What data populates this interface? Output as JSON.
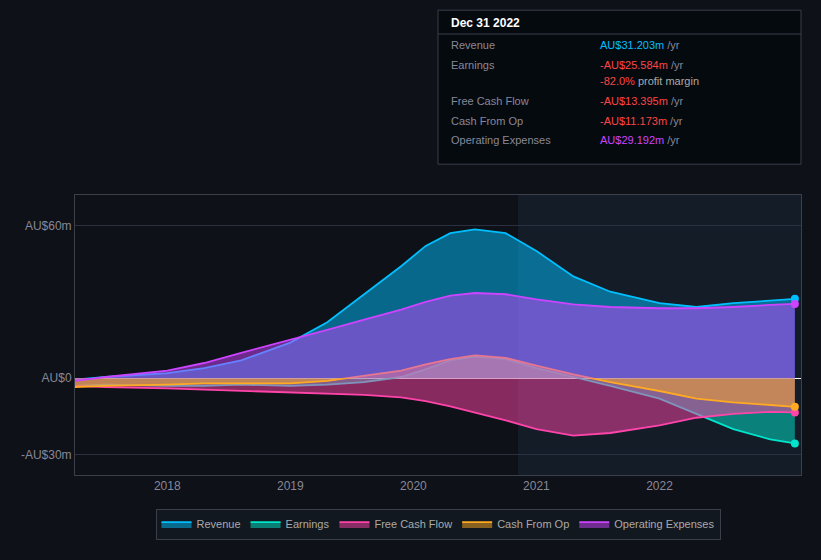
{
  "chart_data": {
    "type": "area",
    "x": [
      2017.25,
      2017.5,
      2018.0,
      2018.3,
      2018.6,
      2019.0,
      2019.3,
      2019.6,
      2019.9,
      2020.1,
      2020.3,
      2020.5,
      2020.75,
      2021.0,
      2021.3,
      2021.6,
      2022.0,
      2022.3,
      2022.6,
      2022.9,
      2023.1
    ],
    "series": [
      {
        "name": "Revenue",
        "color": "#00bfff",
        "values": [
          -0.5,
          0.5,
          2.0,
          4.0,
          7.0,
          14.0,
          22.0,
          33.0,
          44.0,
          52.0,
          57.0,
          58.5,
          57.0,
          50.0,
          40.0,
          34.0,
          29.5,
          28.0,
          29.5,
          30.5,
          31.2
        ]
      },
      {
        "name": "Earnings",
        "color": "#00e5cc",
        "values": [
          -3.0,
          -2.5,
          -3.0,
          -3.0,
          -2.5,
          -3.0,
          -2.5,
          -1.5,
          0.5,
          3.5,
          7.0,
          8.5,
          7.5,
          4.0,
          0.5,
          -3.0,
          -8.0,
          -14.0,
          -20.0,
          -24.0,
          -25.6
        ]
      },
      {
        "name": "Free Cash Flow",
        "color": "#ff44aa",
        "values": [
          -3.0,
          -3.5,
          -4.0,
          -4.5,
          -5.0,
          -5.5,
          -6.0,
          -6.5,
          -7.5,
          -9.0,
          -11.0,
          -13.5,
          -16.5,
          -20.0,
          -22.5,
          -21.5,
          -18.5,
          -15.5,
          -14.0,
          -13.2,
          -13.4
        ]
      },
      {
        "name": "Cash From Op",
        "color": "#ffaa22",
        "values": [
          -3.5,
          -3.0,
          -2.5,
          -2.0,
          -2.0,
          -2.0,
          -1.0,
          1.0,
          3.0,
          5.5,
          7.5,
          9.0,
          8.0,
          5.0,
          1.5,
          -1.5,
          -5.0,
          -8.0,
          -9.5,
          -10.5,
          -11.2
        ]
      },
      {
        "name": "Operating Expenses",
        "color": "#cc44ff",
        "values": [
          -1.0,
          0.5,
          3.0,
          6.0,
          10.0,
          15.0,
          19.0,
          23.0,
          27.0,
          30.0,
          32.5,
          33.5,
          33.0,
          31.0,
          29.0,
          28.0,
          27.5,
          27.5,
          28.0,
          28.8,
          29.2
        ]
      }
    ],
    "xlim": [
      2017.25,
      2023.15
    ],
    "xticks": [
      2018,
      2019,
      2020,
      2021,
      2022
    ],
    "ylim": [
      -38,
      72
    ],
    "yticks": [
      {
        "value": 60,
        "label": "AU$60m"
      },
      {
        "value": 0,
        "label": "AU$0"
      },
      {
        "value": -30,
        "label": "-AU$30m"
      }
    ],
    "grid": "y",
    "legend": "bottom",
    "marker": "end",
    "highlight_x": [
      2020.85,
      2023.15
    ],
    "info_box": {
      "title": "Dec 31 2022",
      "rows": [
        {
          "label": "Revenue",
          "value": "AU$31.203m",
          "color": "#00bfff",
          "suffix": " /yr"
        },
        {
          "label": "Earnings",
          "value": "-AU$25.584m",
          "color": "#ff4444",
          "suffix": " /yr",
          "note": "-82.0% profit margin",
          "note_color": "#ff4444"
        },
        {
          "label": "Free Cash Flow",
          "value": "-AU$13.395m",
          "color": "#ff4444",
          "suffix": " /yr"
        },
        {
          "label": "Cash From Op",
          "value": "-AU$11.173m",
          "color": "#ff4444",
          "suffix": " /yr"
        },
        {
          "label": "Operating Expenses",
          "value": "AU$29.192m",
          "color": "#cc44ff",
          "suffix": " /yr"
        }
      ]
    }
  }
}
